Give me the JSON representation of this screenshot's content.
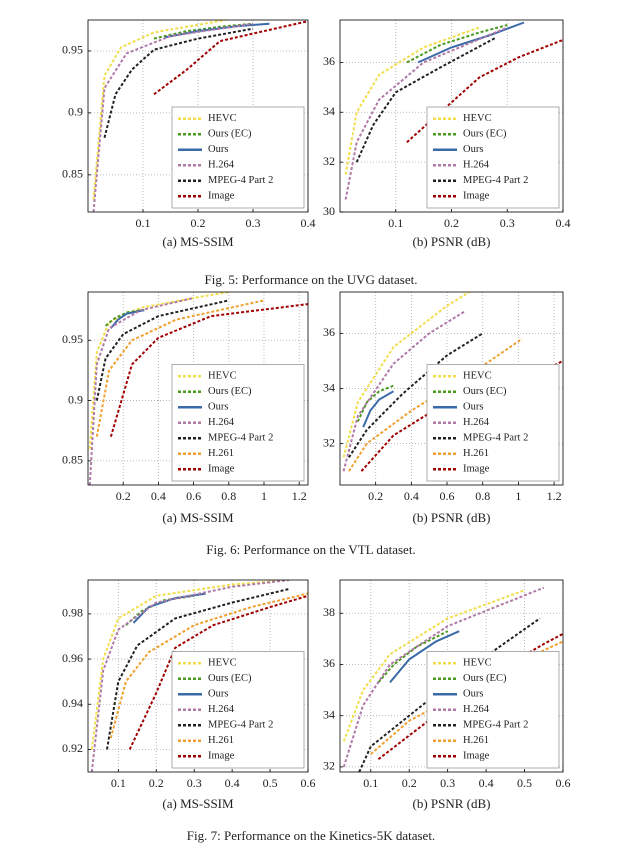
{
  "chart_data": [
    {
      "type": "line",
      "caption": "(a) MS-SSIM",
      "xlim": [
        0,
        0.4
      ],
      "xticks": [
        0.1,
        0.2,
        0.3,
        0.4
      ],
      "ylim": [
        0.82,
        0.975
      ],
      "yticks": [
        0.85,
        0.9,
        0.95
      ],
      "grid": true,
      "legend": "lower right",
      "series": [
        {
          "name": "HEVC",
          "color": "#f2de4a",
          "dash": true,
          "x": [
            0.01,
            0.03,
            0.06,
            0.12,
            0.25
          ],
          "values": [
            0.83,
            0.93,
            0.953,
            0.965,
            0.975
          ]
        },
        {
          "name": "Ours (EC)",
          "color": "#4a9a1e",
          "dash": true,
          "x": [
            0.12,
            0.18,
            0.25,
            0.3
          ],
          "values": [
            0.96,
            0.966,
            0.97,
            0.972
          ]
        },
        {
          "name": "Ours",
          "color": "#3a6aa8",
          "dash": false,
          "x": [
            0.14,
            0.2,
            0.27,
            0.33
          ],
          "values": [
            0.961,
            0.966,
            0.97,
            0.972
          ]
        },
        {
          "name": "H.264",
          "color": "#b07aa8",
          "dash": true,
          "x": [
            0.01,
            0.03,
            0.07,
            0.15,
            0.3
          ],
          "values": [
            0.82,
            0.92,
            0.948,
            0.962,
            0.972
          ]
        },
        {
          "name": "MPEG-4 Part 2",
          "color": "#222222",
          "dash": true,
          "x": [
            0.03,
            0.05,
            0.08,
            0.12,
            0.2,
            0.3
          ],
          "values": [
            0.88,
            0.915,
            0.935,
            0.951,
            0.96,
            0.968
          ]
        },
        {
          "name": "Image",
          "color": "#a00000",
          "dash": true,
          "x": [
            0.12,
            0.18,
            0.24,
            0.32,
            0.4
          ],
          "values": [
            0.915,
            0.935,
            0.958,
            0.966,
            0.974
          ]
        }
      ]
    },
    {
      "type": "line",
      "caption": "(b) PSNR (dB)",
      "xlim": [
        0,
        0.4
      ],
      "xticks": [
        0.1,
        0.2,
        0.3,
        0.4
      ],
      "ylim": [
        30,
        37.7
      ],
      "yticks": [
        30,
        32,
        34,
        36
      ],
      "grid": true,
      "legend": "lower right",
      "series": [
        {
          "name": "HEVC",
          "color": "#f2de4a",
          "dash": true,
          "x": [
            0.01,
            0.03,
            0.07,
            0.15,
            0.25
          ],
          "values": [
            31.5,
            34,
            35.5,
            36.6,
            37.4
          ]
        },
        {
          "name": "Ours (EC)",
          "color": "#4a9a1e",
          "dash": true,
          "x": [
            0.12,
            0.18,
            0.25,
            0.3
          ],
          "values": [
            36,
            36.7,
            37.2,
            37.5
          ]
        },
        {
          "name": "Ours",
          "color": "#3a6aa8",
          "dash": false,
          "x": [
            0.14,
            0.2,
            0.27,
            0.33
          ],
          "values": [
            36,
            36.6,
            37.1,
            37.6
          ]
        },
        {
          "name": "H.264",
          "color": "#b07aa8",
          "dash": true,
          "x": [
            0.01,
            0.03,
            0.07,
            0.15,
            0.3
          ],
          "values": [
            30.5,
            32.8,
            34.5,
            36,
            37.4
          ]
        },
        {
          "name": "MPEG-4 Part 2",
          "color": "#222222",
          "dash": true,
          "x": [
            0.03,
            0.06,
            0.1,
            0.18,
            0.28
          ],
          "values": [
            32,
            33.5,
            34.8,
            35.8,
            37
          ]
        },
        {
          "name": "Image",
          "color": "#a00000",
          "dash": true,
          "x": [
            0.12,
            0.18,
            0.25,
            0.32,
            0.4
          ],
          "values": [
            32.8,
            34,
            35.4,
            36.2,
            36.9
          ]
        }
      ]
    },
    {
      "type": "line",
      "caption": "(a) MS-SSIM",
      "xlim": [
        0,
        1.25
      ],
      "xticks": [
        0.2,
        0.4,
        0.6,
        0.8,
        1,
        1.2
      ],
      "ylim": [
        0.83,
        0.99
      ],
      "yticks": [
        0.85,
        0.9,
        0.95
      ],
      "grid": true,
      "legend": "lower right",
      "series": [
        {
          "name": "HEVC",
          "color": "#f2de4a",
          "dash": true,
          "x": [
            0.01,
            0.05,
            0.12,
            0.3,
            0.6,
            0.8
          ],
          "values": [
            0.86,
            0.94,
            0.965,
            0.977,
            0.985,
            0.99
          ]
        },
        {
          "name": "Ours (EC)",
          "color": "#4a9a1e",
          "dash": true,
          "x": [
            0.1,
            0.15,
            0.22,
            0.3
          ],
          "values": [
            0.962,
            0.968,
            0.973,
            0.975
          ]
        },
        {
          "name": "Ours",
          "color": "#3a6aa8",
          "dash": false,
          "x": [
            0.13,
            0.17,
            0.22,
            0.32
          ],
          "values": [
            0.96,
            0.967,
            0.972,
            0.975
          ]
        },
        {
          "name": "H.264",
          "color": "#b07aa8",
          "dash": true,
          "x": [
            0.01,
            0.05,
            0.12,
            0.3,
            0.6
          ],
          "values": [
            0.83,
            0.93,
            0.96,
            0.975,
            0.985
          ]
        },
        {
          "name": "MPEG-4 Part 2",
          "color": "#222222",
          "dash": true,
          "x": [
            0.05,
            0.1,
            0.2,
            0.4,
            0.8
          ],
          "values": [
            0.9,
            0.935,
            0.955,
            0.97,
            0.983
          ]
        },
        {
          "name": "H.261",
          "color": "#f0a030",
          "dash": true,
          "x": [
            0.05,
            0.12,
            0.25,
            0.5,
            1.0
          ],
          "values": [
            0.87,
            0.925,
            0.95,
            0.967,
            0.983
          ]
        },
        {
          "name": "Image",
          "color": "#a00000",
          "dash": true,
          "x": [
            0.13,
            0.25,
            0.4,
            0.7,
            1.25
          ],
          "values": [
            0.87,
            0.93,
            0.952,
            0.97,
            0.98
          ]
        }
      ]
    },
    {
      "type": "line",
      "caption": "(b) PSNR (dB)",
      "xlim": [
        0,
        1.25
      ],
      "xticks": [
        0.2,
        0.4,
        0.6,
        0.8,
        1,
        1.2
      ],
      "ylim": [
        30.5,
        37.5
      ],
      "yticks": [
        32,
        34,
        36
      ],
      "grid": true,
      "legend": "lower right",
      "series": [
        {
          "name": "HEVC",
          "color": "#f2de4a",
          "dash": true,
          "x": [
            0.02,
            0.1,
            0.3,
            0.6,
            0.8
          ],
          "values": [
            31.5,
            33.5,
            35.5,
            37,
            37.8
          ]
        },
        {
          "name": "Ours (EC)",
          "color": "#4a9a1e",
          "dash": true,
          "x": [
            0.1,
            0.15,
            0.22,
            0.3
          ],
          "values": [
            32.8,
            33.5,
            33.9,
            34.1
          ]
        },
        {
          "name": "Ours",
          "color": "#3a6aa8",
          "dash": false,
          "x": [
            0.13,
            0.17,
            0.22,
            0.3
          ],
          "values": [
            32.6,
            33.2,
            33.6,
            33.9
          ]
        },
        {
          "name": "H.264",
          "color": "#b07aa8",
          "dash": true,
          "x": [
            0.02,
            0.1,
            0.3,
            0.5,
            0.7
          ],
          "values": [
            31,
            33,
            34.9,
            36,
            36.8
          ]
        },
        {
          "name": "MPEG-4 Part 2",
          "color": "#222222",
          "dash": true,
          "x": [
            0.05,
            0.15,
            0.35,
            0.6,
            0.8
          ],
          "values": [
            31.5,
            32.5,
            33.8,
            35.2,
            36
          ]
        },
        {
          "name": "H.261",
          "color": "#f0a030",
          "dash": true,
          "x": [
            0.05,
            0.15,
            0.4,
            0.75,
            1.02
          ],
          "values": [
            31,
            32,
            33.2,
            34.6,
            35.8
          ]
        },
        {
          "name": "Image",
          "color": "#a00000",
          "dash": true,
          "x": [
            0.12,
            0.3,
            0.6,
            1.0,
            1.25
          ],
          "values": [
            31,
            32.3,
            33.5,
            34.2,
            35
          ]
        }
      ]
    },
    {
      "type": "line",
      "caption": "(a) MS-SSIM",
      "xlim": [
        0.02,
        0.6
      ],
      "xticks": [
        0.1,
        0.2,
        0.3,
        0.4,
        0.5,
        0.6
      ],
      "ylim": [
        0.91,
        0.995
      ],
      "yticks": [
        0.92,
        0.94,
        0.96,
        0.98
      ],
      "grid": true,
      "legend": "lower right",
      "series": [
        {
          "name": "HEVC",
          "color": "#f2de4a",
          "dash": true,
          "x": [
            0.03,
            0.06,
            0.1,
            0.2,
            0.4,
            0.55
          ],
          "values": [
            0.92,
            0.96,
            0.978,
            0.988,
            0.993,
            0.995
          ]
        },
        {
          "name": "Ours (EC)",
          "color": "#4a9a1e",
          "dash": true,
          "x": [
            0.12,
            0.16,
            0.22,
            0.3
          ],
          "values": [
            0.975,
            0.981,
            0.986,
            0.988
          ]
        },
        {
          "name": "Ours",
          "color": "#3a6aa8",
          "dash": false,
          "x": [
            0.14,
            0.18,
            0.25,
            0.33
          ],
          "values": [
            0.976,
            0.983,
            0.987,
            0.989
          ]
        },
        {
          "name": "H.264",
          "color": "#b07aa8",
          "dash": true,
          "x": [
            0.03,
            0.06,
            0.1,
            0.2,
            0.4,
            0.55
          ],
          "values": [
            0.91,
            0.955,
            0.973,
            0.985,
            0.992,
            0.995
          ]
        },
        {
          "name": "MPEG-4 Part 2",
          "color": "#222222",
          "dash": true,
          "x": [
            0.07,
            0.1,
            0.15,
            0.25,
            0.4,
            0.55
          ],
          "values": [
            0.92,
            0.95,
            0.966,
            0.978,
            0.985,
            0.991
          ]
        },
        {
          "name": "H.261",
          "color": "#f0a030",
          "dash": true,
          "x": [
            0.08,
            0.12,
            0.18,
            0.3,
            0.45,
            0.6
          ],
          "values": [
            0.925,
            0.95,
            0.963,
            0.975,
            0.983,
            0.989
          ]
        },
        {
          "name": "Image",
          "color": "#a00000",
          "dash": true,
          "x": [
            0.13,
            0.2,
            0.25,
            0.35,
            0.5,
            0.6
          ],
          "values": [
            0.92,
            0.945,
            0.965,
            0.975,
            0.983,
            0.988
          ]
        }
      ]
    },
    {
      "type": "line",
      "caption": "(b) PSNR (dB)",
      "xlim": [
        0.02,
        0.6
      ],
      "xticks": [
        0.1,
        0.2,
        0.3,
        0.4,
        0.5,
        0.6
      ],
      "ylim": [
        31.8,
        39.3
      ],
      "yticks": [
        32,
        34,
        36,
        38
      ],
      "grid": true,
      "legend": "lower right",
      "series": [
        {
          "name": "HEVC",
          "color": "#f2de4a",
          "dash": true,
          "x": [
            0.03,
            0.08,
            0.15,
            0.3,
            0.5
          ],
          "values": [
            33,
            35,
            36.4,
            37.8,
            38.9
          ]
        },
        {
          "name": "Ours (EC)",
          "color": "#4a9a1e",
          "dash": true,
          "x": [
            0.12,
            0.16,
            0.22,
            0.3
          ],
          "values": [
            35.3,
            36,
            36.7,
            37.3
          ]
        },
        {
          "name": "Ours",
          "color": "#3a6aa8",
          "dash": false,
          "x": [
            0.15,
            0.2,
            0.27,
            0.33
          ],
          "values": [
            35.3,
            36.2,
            36.9,
            37.3
          ]
        },
        {
          "name": "H.264",
          "color": "#b07aa8",
          "dash": true,
          "x": [
            0.03,
            0.08,
            0.15,
            0.3,
            0.55
          ],
          "values": [
            32,
            34.4,
            36,
            37.5,
            39
          ]
        },
        {
          "name": "MPEG-4 Part 2",
          "color": "#222222",
          "dash": true,
          "x": [
            0.07,
            0.1,
            0.2,
            0.35,
            0.54
          ],
          "values": [
            31.8,
            32.8,
            34,
            35.8,
            37.8
          ]
        },
        {
          "name": "H.261",
          "color": "#f0a030",
          "dash": true,
          "x": [
            0.1,
            0.2,
            0.35,
            0.5,
            0.6
          ],
          "values": [
            32.5,
            33.8,
            35,
            36.2,
            36.9
          ]
        },
        {
          "name": "Image",
          "color": "#a00000",
          "dash": true,
          "x": [
            0.12,
            0.25,
            0.4,
            0.55,
            0.6
          ],
          "values": [
            32.3,
            33.8,
            35.5,
            36.8,
            37.2
          ]
        }
      ]
    }
  ],
  "figure_captions": [
    "Fig. 5: Performance on the UVG dataset.",
    "Fig. 6: Performance on the VTL dataset.",
    "Fig. 7: Performance on the Kinetics-5K dataset."
  ]
}
